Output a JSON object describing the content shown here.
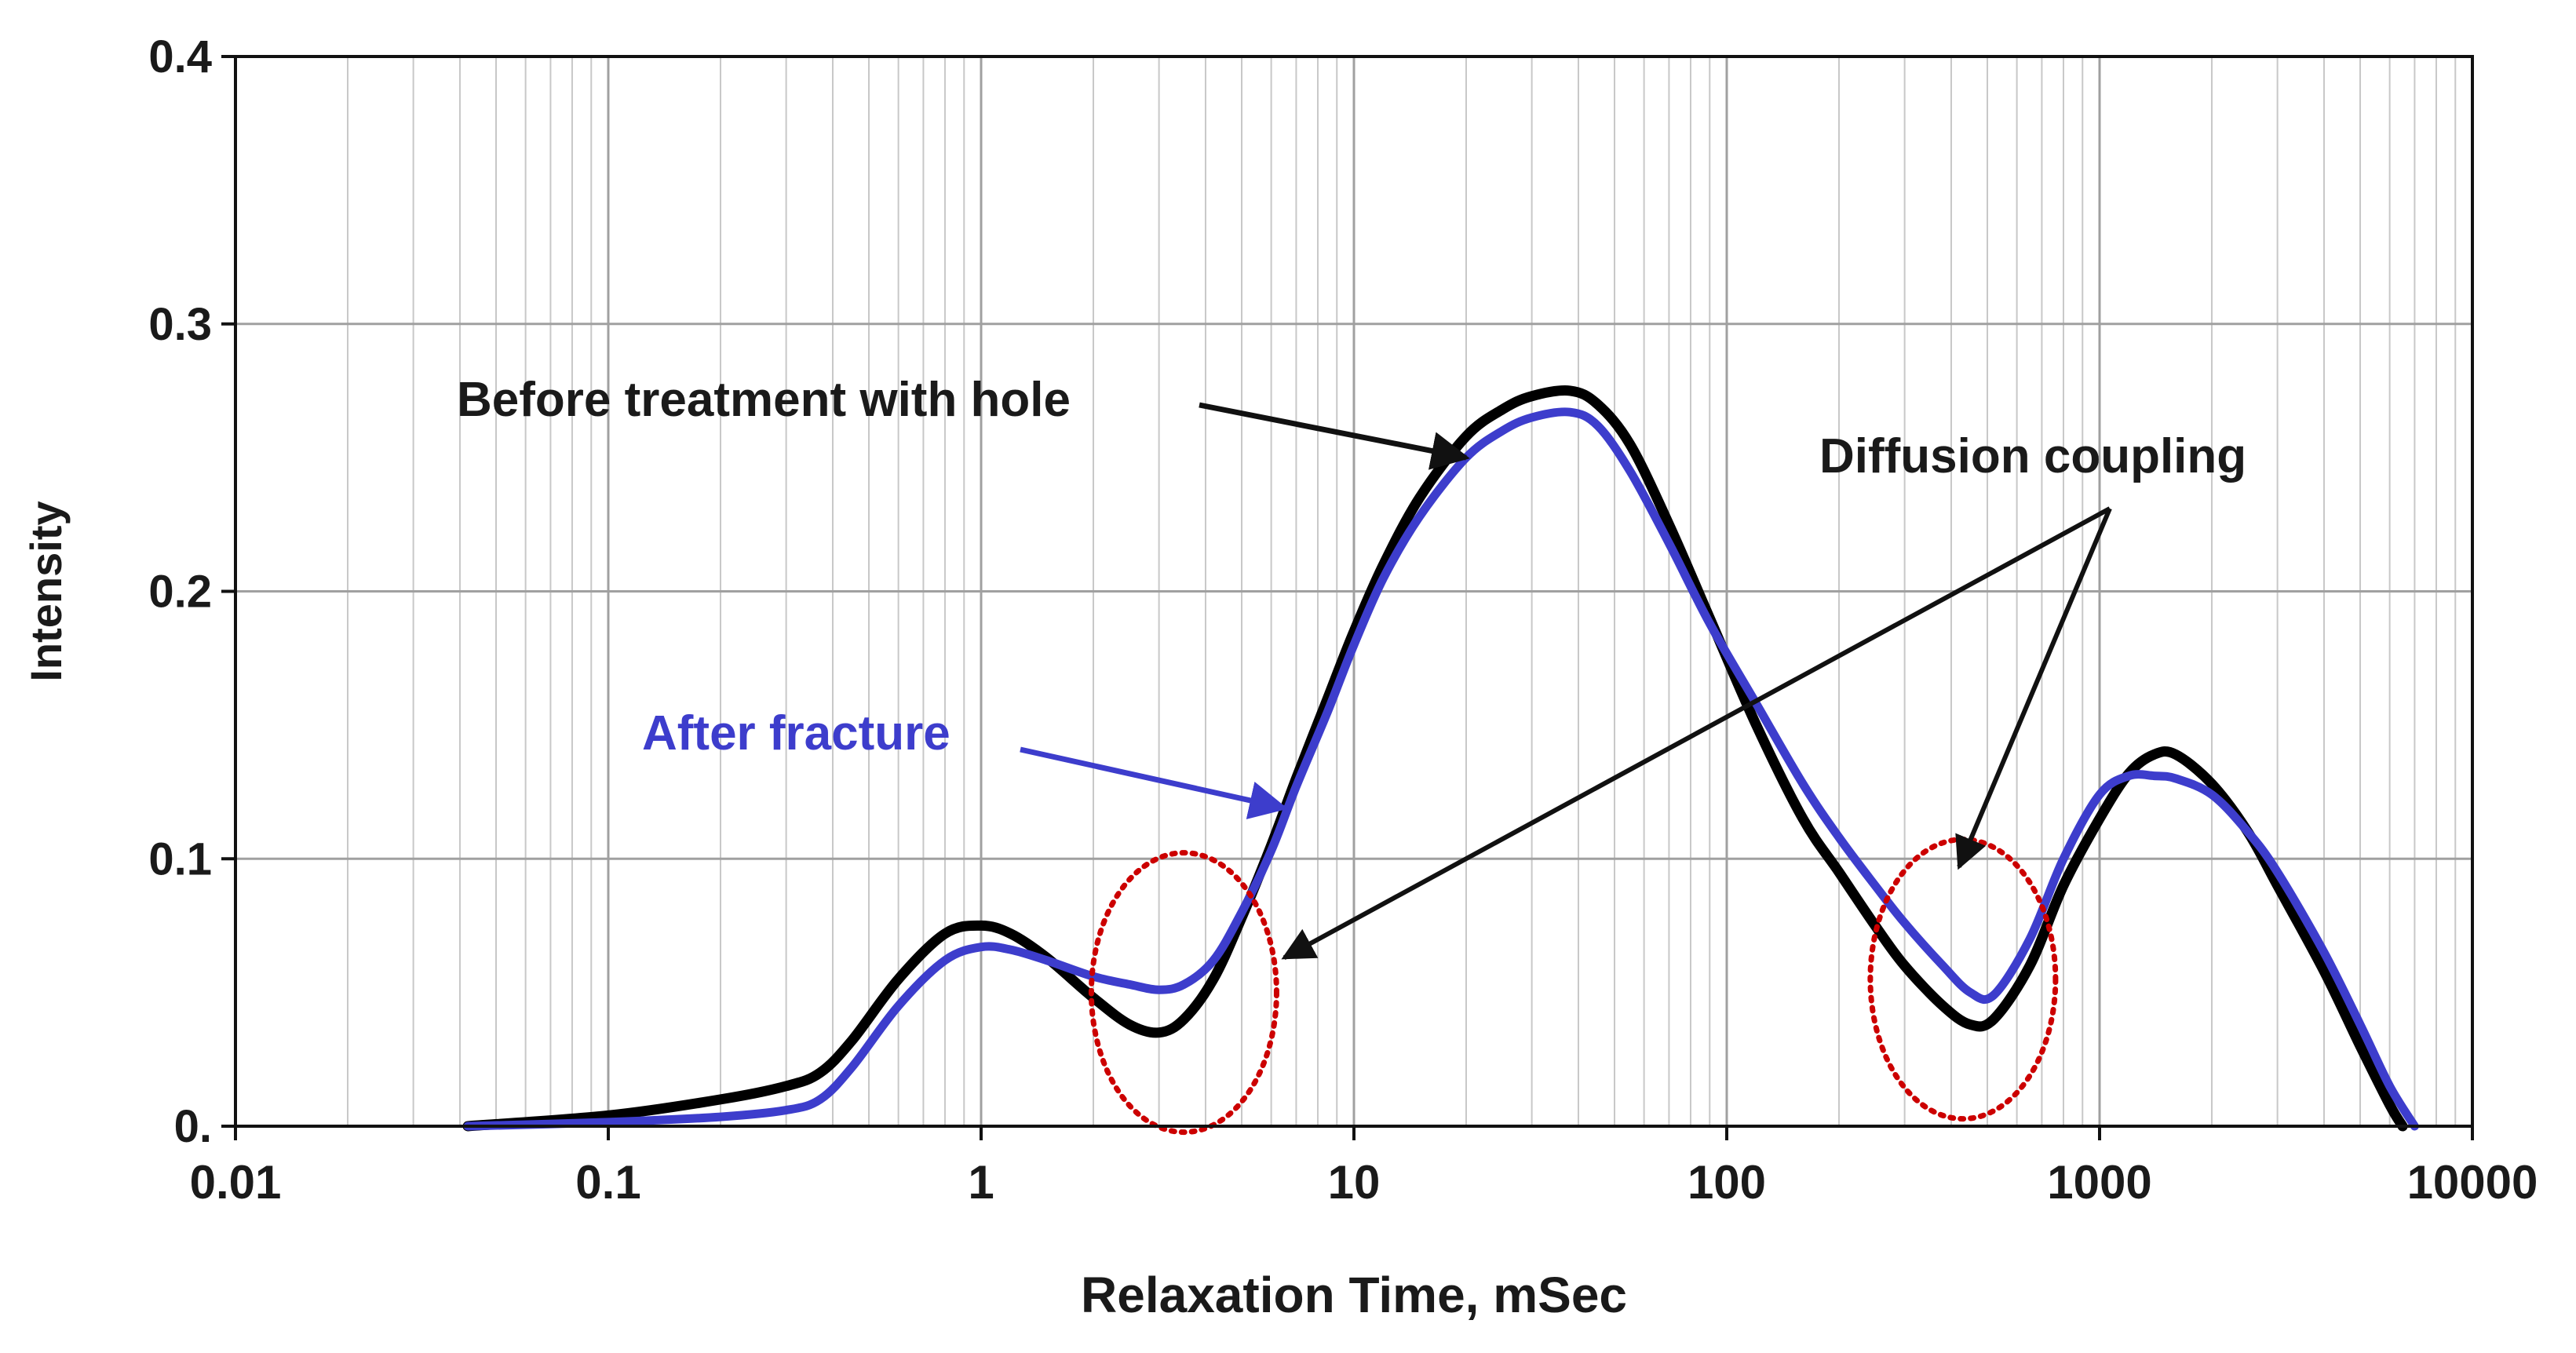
{
  "chart_data": {
    "type": "line",
    "title": "",
    "xlabel": "Relaxation Time, mSec",
    "ylabel": "Intensity",
    "xscale": "log",
    "xlim": [
      0.01,
      10000
    ],
    "ylim": [
      0,
      0.4
    ],
    "grid": true,
    "x_ticks": [
      0.01,
      0.1,
      1,
      10,
      100,
      1000,
      10000
    ],
    "x_tick_labels": [
      "0.01",
      "0.1",
      "1",
      "10",
      "100",
      "1000",
      "10000"
    ],
    "y_ticks": [
      0,
      0.1,
      0.2,
      0.3,
      0.4
    ],
    "y_tick_labels": [
      "0.",
      "0.1",
      "0.2",
      "0.3",
      "0.4"
    ],
    "series": [
      {
        "name": "Before treatment with hole",
        "color": "#000000",
        "x": [
          0.042,
          0.1,
          0.2,
          0.3,
          0.37,
          0.45,
          0.6,
          0.8,
          1.0,
          1.2,
          1.5,
          2.0,
          2.5,
          3.0,
          3.5,
          4.2,
          5.0,
          6.0,
          7.0,
          8.5,
          10,
          12,
          15,
          20,
          25,
          30,
          38,
          45,
          55,
          70,
          90,
          120,
          160,
          200,
          250,
          300,
          380,
          450,
          520,
          650,
          800,
          1000,
          1200,
          1400,
          1600,
          2000,
          2500,
          3000,
          4000,
          5000,
          6000,
          6500
        ],
        "y": [
          0.0,
          0.004,
          0.01,
          0.015,
          0.02,
          0.032,
          0.055,
          0.072,
          0.075,
          0.072,
          0.063,
          0.048,
          0.038,
          0.035,
          0.04,
          0.055,
          0.078,
          0.105,
          0.13,
          0.16,
          0.185,
          0.21,
          0.235,
          0.258,
          0.268,
          0.273,
          0.275,
          0.27,
          0.255,
          0.225,
          0.19,
          0.15,
          0.115,
          0.095,
          0.075,
          0.06,
          0.045,
          0.038,
          0.04,
          0.06,
          0.09,
          0.115,
          0.132,
          0.139,
          0.139,
          0.128,
          0.11,
          0.09,
          0.058,
          0.03,
          0.008,
          0.0
        ]
      },
      {
        "name": "After fracture",
        "color": "#3d3dcc",
        "x": [
          0.042,
          0.1,
          0.2,
          0.3,
          0.37,
          0.45,
          0.6,
          0.8,
          1.0,
          1.2,
          1.5,
          2.0,
          2.5,
          3.0,
          3.5,
          4.2,
          5.0,
          6.0,
          7.0,
          8.5,
          10,
          12,
          15,
          20,
          25,
          30,
          38,
          45,
          55,
          70,
          90,
          120,
          160,
          200,
          250,
          300,
          380,
          450,
          520,
          650,
          800,
          1000,
          1200,
          1400,
          1600,
          2000,
          2500,
          3000,
          4000,
          5000,
          6000,
          7000
        ],
        "y": [
          0.0,
          0.0015,
          0.0035,
          0.006,
          0.01,
          0.022,
          0.045,
          0.062,
          0.067,
          0.066,
          0.062,
          0.056,
          0.053,
          0.051,
          0.053,
          0.062,
          0.08,
          0.103,
          0.127,
          0.155,
          0.18,
          0.205,
          0.228,
          0.25,
          0.26,
          0.265,
          0.267,
          0.262,
          0.245,
          0.218,
          0.188,
          0.158,
          0.128,
          0.108,
          0.09,
          0.076,
          0.06,
          0.05,
          0.049,
          0.07,
          0.1,
          0.124,
          0.131,
          0.131,
          0.13,
          0.124,
          0.11,
          0.095,
          0.065,
          0.038,
          0.015,
          0.0
        ]
      }
    ],
    "annotations": [
      {
        "text": "Before treatment with hole",
        "color": "#1a1a1a",
        "arrow_to": [
          20,
          0.25
        ]
      },
      {
        "text": "After fracture",
        "color": "#3d3dcc",
        "arrow_to": [
          6.5,
          0.119
        ]
      },
      {
        "text": "Diffusion coupling",
        "color": "#1a1a1a",
        "arrows_to": [
          [
            6.5,
            0.063
          ],
          [
            420,
            0.097
          ]
        ]
      }
    ],
    "highlight_regions": [
      {
        "label": "",
        "center": [
          3.5,
          0.05
        ],
        "color": "#cc0000"
      },
      {
        "label": "",
        "center": [
          430,
          0.055
        ],
        "color": "#cc0000"
      }
    ]
  }
}
